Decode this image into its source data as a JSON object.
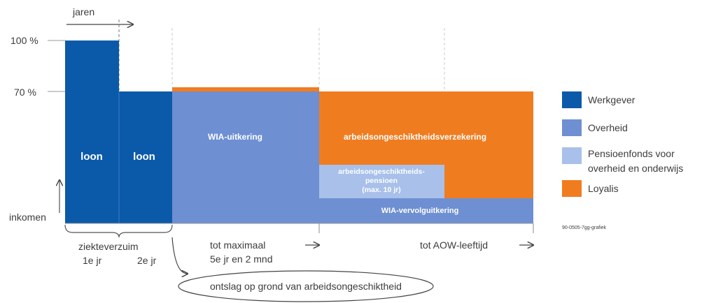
{
  "axis": {
    "top_label": "jaren",
    "y_100": "100 %",
    "y_70": "70 %",
    "y_bottom": "inkomen"
  },
  "blocks": {
    "loon_1": "loon",
    "loon_2": "loon",
    "wia_uitkering": "WIA-uitkering",
    "ao_verzekering": "arbeidsongeschiktheidsverzekering",
    "ao_pensioen_line1": "arbeidsongeschiktheids-",
    "ao_pensioen_line2": "pensioen",
    "ao_pensioen_line3": "(max. 10 jr)",
    "wia_vervolg": "WIA-vervolguitkering"
  },
  "periods": {
    "ziekteverzuim": "ziekteverzuim",
    "jaar1": "1e jr",
    "jaar2": "2e jr",
    "tot_max_line1": "tot maximaal",
    "tot_max_line2": "5e jr en 2 mnd",
    "tot_aow": "tot AOW-leeftijd"
  },
  "ontslag": "ontslag op grond van arbeidsongeschiktheid",
  "legend": [
    {
      "label": "Werkgever",
      "color": "#0b5aaa"
    },
    {
      "label": "Overheid",
      "color": "#6e8fd2"
    },
    {
      "label_line1": "Pensioenfonds voor",
      "label_line2": "overheid en onderwijs",
      "color": "#a8c0ea"
    },
    {
      "label": "Loyalis",
      "color": "#f07c20"
    }
  ],
  "credit": "90-0505-7gg-grafiek"
}
